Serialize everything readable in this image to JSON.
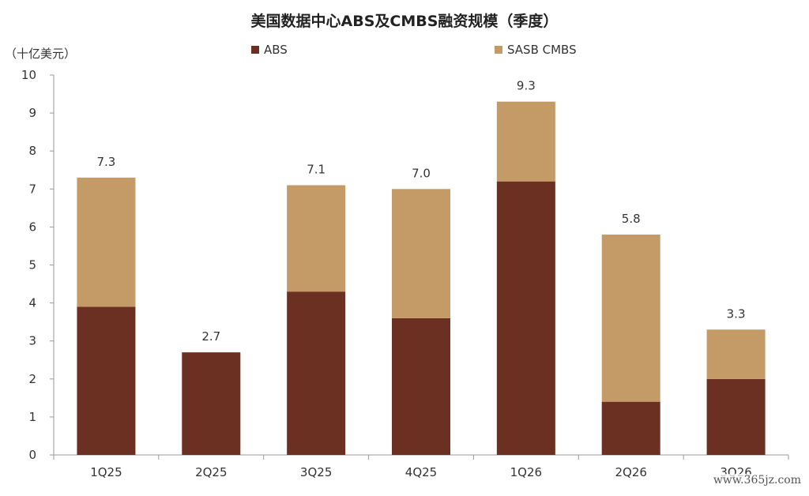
{
  "chart_data": {
    "type": "bar",
    "stacked": true,
    "title": "美国数据中心ABS及CMBS融资规模（季度）",
    "unit_label": "（十亿美元）",
    "categories": [
      "1Q25",
      "2Q25",
      "3Q25",
      "4Q25",
      "1Q26",
      "2Q26",
      "3Q26"
    ],
    "series": [
      {
        "name": "ABS",
        "color": "#6b3022",
        "values": [
          3.9,
          2.7,
          4.3,
          3.6,
          7.2,
          1.4,
          2.0
        ]
      },
      {
        "name": "SASB CMBS",
        "color": "#c49a66",
        "values": [
          3.4,
          0.0,
          2.8,
          3.4,
          2.1,
          4.4,
          1.3
        ]
      }
    ],
    "totals": [
      "7.3",
      "2.7",
      "7.1",
      "7.0",
      "9.3",
      "5.8",
      "3.3"
    ],
    "ylim": [
      0,
      10
    ],
    "yticks": [
      0,
      1,
      2,
      3,
      4,
      5,
      6,
      7,
      8,
      9,
      10
    ],
    "grid": false,
    "legend_position": "top"
  },
  "watermark": "www.365jz.com"
}
